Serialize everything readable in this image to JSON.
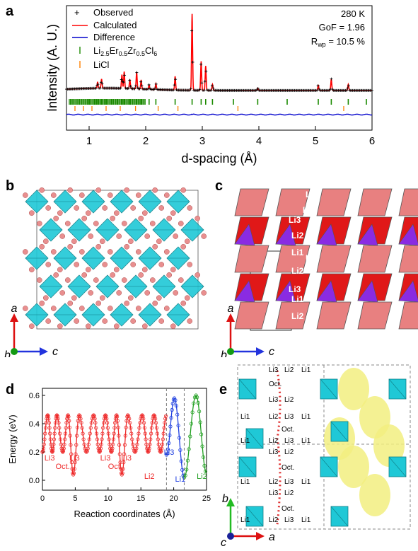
{
  "panels": {
    "a": "a",
    "b": "b",
    "c": "c",
    "d": "d",
    "e": "e"
  },
  "colors": {
    "observed": "#000000",
    "calculated": "#ff0000",
    "difference": "#0000cc",
    "phase1_ticks": "#1a8a00",
    "phase2_ticks": "#ff7f00",
    "octahedron": "#1fc8d6",
    "chlorine": "#e88f8f",
    "li1_poly": "#e01818",
    "li2_poly": "#e88080",
    "li3_poly": "#8a2be2",
    "li1_energy": "#2040e0",
    "li2_energy": "#22a022",
    "li3_energy": "#ee2a2a",
    "density": "#f2ef80"
  },
  "chart_data": [
    {
      "panel": "a",
      "type": "line",
      "xlabel": "d-spacing (Å)",
      "ylabel": "Intensity (A. U.)",
      "xlim": [
        0.6,
        6.0
      ],
      "xticks": [
        "1",
        "2",
        "3",
        "4",
        "5",
        "6"
      ],
      "legend_position": "top-left",
      "legend": [
        "Observed",
        "Calculated",
        "Difference",
        "Li2.5Er0.5Zr0.5Cl6",
        "LiCl"
      ],
      "phase1_label": {
        "base1": "Li",
        "sub1": "2.5",
        "base2": "Er",
        "sub2": "0.5",
        "base3": "Zr",
        "sub3": "0.5",
        "base4": "Cl",
        "sub4": "6"
      },
      "phase2_label": "LiCl",
      "annotations": {
        "temperature": "280 K",
        "gof": "GoF = 1.96",
        "rwp_prefix": "R",
        "rwp_sub": "wp",
        "rwp_suffix": " = 10.5 %"
      },
      "peaks": [
        {
          "d": 1.15,
          "h": 0.08
        },
        {
          "d": 1.22,
          "h": 0.12
        },
        {
          "d": 1.58,
          "h": 0.18
        },
        {
          "d": 1.62,
          "h": 0.22
        },
        {
          "d": 1.72,
          "h": 0.12
        },
        {
          "d": 1.84,
          "h": 0.22
        },
        {
          "d": 1.92,
          "h": 0.12
        },
        {
          "d": 2.06,
          "h": 0.06
        },
        {
          "d": 2.18,
          "h": 0.08
        },
        {
          "d": 2.52,
          "h": 0.18
        },
        {
          "d": 2.82,
          "h": 1.0
        },
        {
          "d": 2.98,
          "h": 0.38
        },
        {
          "d": 3.06,
          "h": 0.32
        },
        {
          "d": 3.18,
          "h": 0.08
        },
        {
          "d": 3.98,
          "h": 0.03
        },
        {
          "d": 5.05,
          "h": 0.07
        },
        {
          "d": 5.28,
          "h": 0.15
        },
        {
          "d": 5.58,
          "h": 0.08
        }
      ],
      "phase1_ticks_d": [
        1.0,
        1.1,
        1.15,
        1.22,
        1.3,
        1.4,
        1.5,
        1.58,
        1.62,
        1.72,
        1.84,
        1.92,
        2.06,
        2.18,
        2.52,
        2.82,
        2.98,
        3.06,
        3.18,
        3.55,
        3.98,
        4.5,
        5.05,
        5.28,
        5.58,
        5.9
      ],
      "phase2_ticks_d": [
        0.75,
        0.9,
        1.05,
        1.3,
        1.55,
        1.82,
        2.22,
        2.57,
        3.63,
        5.5
      ]
    },
    {
      "panel": "d",
      "type": "line",
      "xlabel": "Reaction coordinates (Å)",
      "ylabel": "Energy (eV)",
      "xlim": [
        0,
        25
      ],
      "ylim": [
        -0.07,
        0.65
      ],
      "xticks": [
        0,
        5,
        10,
        15,
        20,
        25
      ],
      "yticks": [
        "0.0",
        "0.2",
        "0.4",
        "0.6"
      ],
      "dividers_x": [
        18.9,
        21.6
      ],
      "series": [
        {
          "name": "Li3",
          "segment": "Li3–Oct–Li2",
          "x": [
            0,
            0.8,
            1.5,
            2.2,
            3.1,
            3.9,
            4.7,
            5.6,
            6.7,
            7.8,
            8.7,
            9.6,
            10.5,
            11.3,
            12.1,
            13.0,
            14.1,
            15.2,
            16.1,
            17.0,
            18.0,
            18.9
          ],
          "y": [
            0.2,
            0.46,
            0.2,
            0.46,
            0.2,
            0.46,
            0.04,
            0.46,
            0.2,
            0.46,
            0.2,
            0.46,
            0.2,
            0.46,
            0.04,
            0.46,
            0.2,
            0.46,
            0.2,
            0.46,
            0.2,
            0.46
          ]
        },
        {
          "name": "Li1",
          "x": [
            18.9,
            20.1,
            21.6
          ],
          "y": [
            0.18,
            0.58,
            0.02
          ]
        },
        {
          "name": "Li2",
          "x": [
            21.6,
            23.4,
            25.0
          ],
          "y": [
            0.02,
            0.6,
            0.05
          ]
        }
      ],
      "annotations": [
        {
          "text": "Li3",
          "x": 0.3,
          "y": 0.14
        },
        {
          "text": "Li3",
          "x": 4.1,
          "y": 0.14
        },
        {
          "text": "Li3",
          "x": 8.8,
          "y": 0.14
        },
        {
          "text": "Li3",
          "x": 12.0,
          "y": 0.14
        },
        {
          "text": "Li3",
          "x": 18.5,
          "y": 0.18
        },
        {
          "text": "Oct.",
          "x": 2.0,
          "y": 0.08
        },
        {
          "text": "Oct.",
          "x": 10.0,
          "y": 0.08
        },
        {
          "text": "Li2",
          "x": 15.5,
          "y": 0.01
        },
        {
          "text": "Li1",
          "x": 20.2,
          "y": -0.01
        },
        {
          "text": "Li2",
          "x": 23.5,
          "y": 0.01
        }
      ]
    }
  ],
  "structure_b": {
    "axis_a": "a",
    "axis_b": "b",
    "axis_c": "c"
  },
  "structure_c": {
    "labels": [
      "Li2",
      "Li1",
      "Li3",
      "Li2",
      "Li1",
      "Li3",
      "Li2",
      "Li3",
      "Li1",
      "Li2",
      "Li1"
    ],
    "axis_a": "a",
    "axis_b": "b",
    "axis_c": "c"
  },
  "structure_e": {
    "labels": [
      "Li3",
      "Li2",
      "Li1",
      "Oct.",
      "Li3",
      "Li2",
      "Li1",
      "Li1",
      "Li2",
      "Li3",
      "Oct.",
      "Li1",
      "Li2",
      "Li3",
      "Li1",
      "Li3",
      "Li2",
      "Oct.",
      "Li1",
      "Li2",
      "Li3",
      "Li1",
      "Li3",
      "Li2",
      "Oct.",
      "Li1",
      "Li2",
      "Li3",
      "Li1"
    ],
    "axis_a": "a",
    "axis_b": "b",
    "axis_c": "c"
  }
}
